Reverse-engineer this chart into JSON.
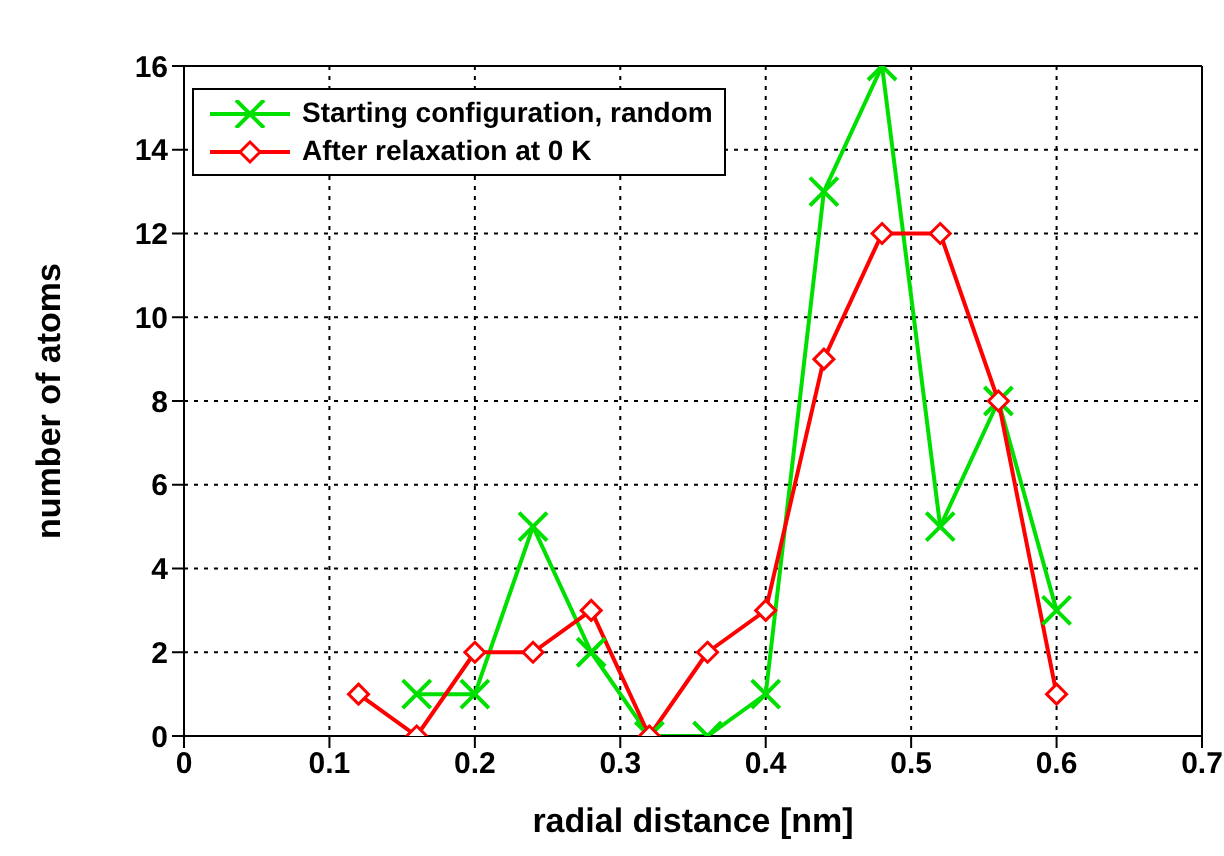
{
  "chart_data": {
    "type": "line",
    "xlabel": "radial distance [nm]",
    "ylabel": "number of atoms",
    "xlim": [
      0,
      0.7
    ],
    "xticks": [
      0,
      0.1,
      0.2,
      0.3,
      0.4,
      0.5,
      0.6,
      0.7
    ],
    "ylim": [
      0,
      16
    ],
    "yticks": [
      0,
      2,
      4,
      6,
      8,
      10,
      12,
      14,
      16
    ],
    "grid": true,
    "legend": "top left",
    "series": [
      {
        "name": "Starting configuration, random",
        "color": "#00e000",
        "marker": "cross",
        "x": [
          0.16,
          0.2,
          0.24,
          0.28,
          0.32,
          0.36,
          0.4,
          0.44,
          0.48,
          0.52,
          0.56,
          0.6
        ],
        "values": [
          1,
          1,
          5,
          2,
          0,
          0,
          1,
          13,
          16,
          5,
          8,
          3
        ]
      },
      {
        "name": "After relaxation at 0 K",
        "color": "#ff0000",
        "marker": "diamond",
        "x": [
          0.12,
          0.16,
          0.2,
          0.24,
          0.28,
          0.32,
          0.36,
          0.4,
          0.44,
          0.48,
          0.52,
          0.56,
          0.6
        ],
        "values": [
          1,
          0,
          2,
          2,
          3,
          0,
          2,
          3,
          9,
          12,
          12,
          8,
          1
        ]
      }
    ]
  }
}
